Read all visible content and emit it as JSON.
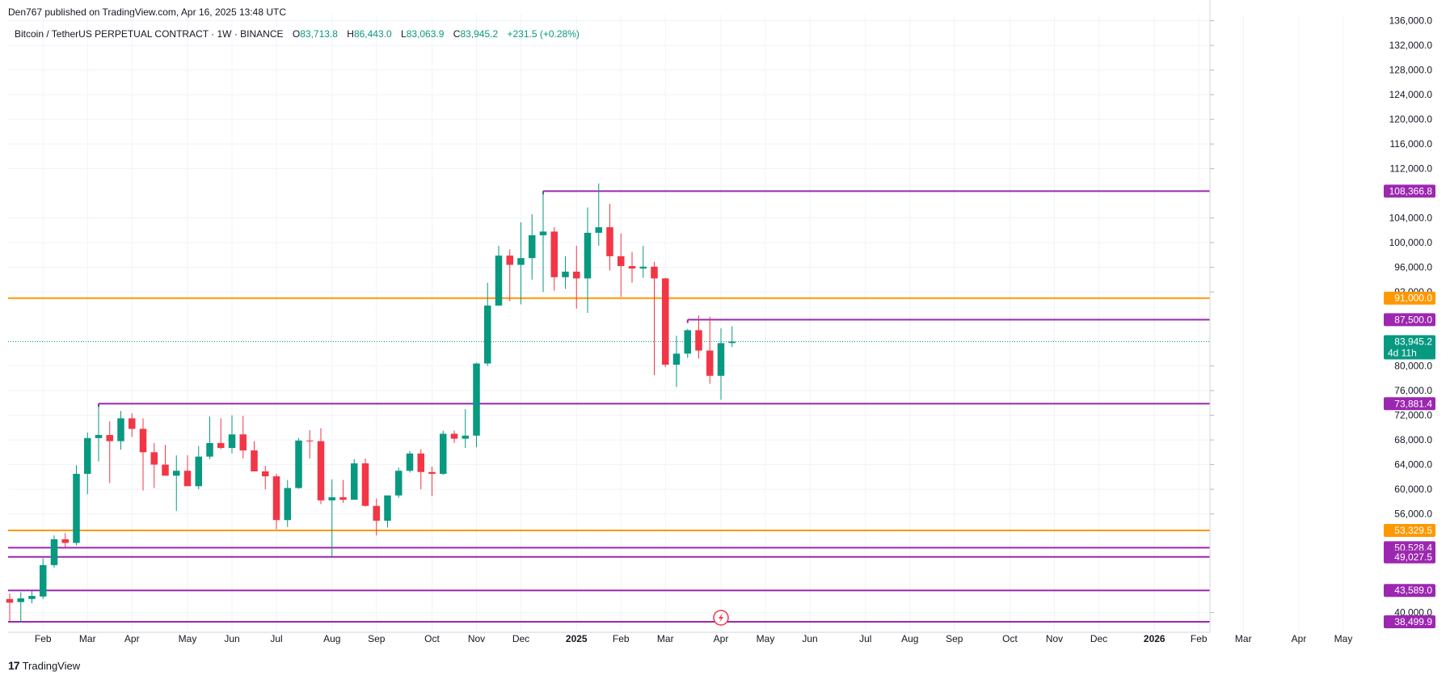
{
  "publisher": "Den767 published on TradingView.com, Apr 16, 2025 13:48 UTC",
  "footer": {
    "logo_icon": "tradingview-logo-icon",
    "brand": "TradingView"
  },
  "legend": {
    "symbol": "Bitcoin / TetherUS PERPETUAL CONTRACT · 1W · BINANCE",
    "open_label": "O",
    "open": "83,713.8",
    "high_label": "H",
    "high": "86,443.0",
    "low_label": "L",
    "low": "83,063.9",
    "close_label": "C",
    "close": "83,945.2",
    "change": "+231.5 (+0.28%)"
  },
  "colors": {
    "up": "#089981",
    "down": "#f23645",
    "purple": "#9c27b0",
    "orange": "#ff9800",
    "grid": "#f0f3fa"
  },
  "chart_data": {
    "type": "candlestick",
    "interval": "1W",
    "ylim": [
      36800,
      137000
    ],
    "y_ticks": [
      {
        "v": 40000,
        "label": "40,000.0"
      },
      {
        "v": 56000,
        "label": "56,000.0"
      },
      {
        "v": 60000,
        "label": "60,000.0"
      },
      {
        "v": 64000,
        "label": "64,000.0"
      },
      {
        "v": 68000,
        "label": "68,000.0"
      },
      {
        "v": 72000,
        "label": "72,000.0"
      },
      {
        "v": 76000,
        "label": "76,000.0"
      },
      {
        "v": 80000,
        "label": "80,000.0"
      },
      {
        "v": 92000,
        "label": "92,000.0"
      },
      {
        "v": 96000,
        "label": "96,000.0"
      },
      {
        "v": 100000,
        "label": "100,000.0"
      },
      {
        "v": 104000,
        "label": "104,000.0"
      },
      {
        "v": 112000,
        "label": "112,000.0"
      },
      {
        "v": 116000,
        "label": "116,000.0"
      },
      {
        "v": 120000,
        "label": "120,000.0"
      },
      {
        "v": 124000,
        "label": "124,000.0"
      },
      {
        "v": 128000,
        "label": "128,000.0"
      },
      {
        "v": 132000,
        "label": "132,000.0"
      },
      {
        "v": 136000,
        "label": "136,000.0"
      }
    ],
    "x_ticks": [
      {
        "label": "Feb",
        "i": 3,
        "bold": false
      },
      {
        "label": "Mar",
        "i": 7,
        "bold": false
      },
      {
        "label": "Apr",
        "i": 11,
        "bold": false
      },
      {
        "label": "May",
        "i": 16,
        "bold": false
      },
      {
        "label": "Jun",
        "i": 20,
        "bold": false
      },
      {
        "label": "Jul",
        "i": 24,
        "bold": false
      },
      {
        "label": "Aug",
        "i": 29,
        "bold": false
      },
      {
        "label": "Sep",
        "i": 33,
        "bold": false
      },
      {
        "label": "Oct",
        "i": 38,
        "bold": false
      },
      {
        "label": "Nov",
        "i": 42,
        "bold": false
      },
      {
        "label": "Dec",
        "i": 46,
        "bold": false
      },
      {
        "label": "2025",
        "i": 51,
        "bold": true
      },
      {
        "label": "Feb",
        "i": 55,
        "bold": false
      },
      {
        "label": "Mar",
        "i": 59,
        "bold": false
      },
      {
        "label": "Apr",
        "i": 64,
        "bold": false
      },
      {
        "label": "May",
        "i": 68,
        "bold": false
      },
      {
        "label": "Jun",
        "i": 72,
        "bold": false
      },
      {
        "label": "Jul",
        "i": 77,
        "bold": false
      },
      {
        "label": "Aug",
        "i": 81,
        "bold": false
      },
      {
        "label": "Sep",
        "i": 85,
        "bold": false
      },
      {
        "label": "Oct",
        "i": 90,
        "bold": false
      },
      {
        "label": "Nov",
        "i": 94,
        "bold": false
      },
      {
        "label": "Dec",
        "i": 98,
        "bold": false
      },
      {
        "label": "2026",
        "i": 103,
        "bold": true
      },
      {
        "label": "Feb",
        "i": 107,
        "bold": false
      },
      {
        "label": "Mar",
        "i": 111,
        "bold": false
      },
      {
        "label": "Apr",
        "i": 116,
        "bold": false
      },
      {
        "label": "May",
        "i": 120,
        "bold": false
      }
    ],
    "candles": [
      {
        "o": 42200,
        "h": 43100,
        "l": 38600,
        "c": 41600
      },
      {
        "o": 41700,
        "h": 43300,
        "l": 38500,
        "c": 42300
      },
      {
        "o": 42200,
        "h": 43500,
        "l": 41500,
        "c": 42700
      },
      {
        "o": 42600,
        "h": 48800,
        "l": 42200,
        "c": 47700
      },
      {
        "o": 47700,
        "h": 52500,
        "l": 47300,
        "c": 51900
      },
      {
        "o": 51900,
        "h": 52900,
        "l": 50600,
        "c": 51300
      },
      {
        "o": 51300,
        "h": 63900,
        "l": 50900,
        "c": 62500
      },
      {
        "o": 62500,
        "h": 69200,
        "l": 59200,
        "c": 68300
      },
      {
        "o": 68300,
        "h": 73500,
        "l": 64500,
        "c": 68800
      },
      {
        "o": 68800,
        "h": 71000,
        "l": 61000,
        "c": 67800
      },
      {
        "o": 67800,
        "h": 72700,
        "l": 66400,
        "c": 71500
      },
      {
        "o": 71500,
        "h": 72300,
        "l": 68500,
        "c": 69800
      },
      {
        "o": 69800,
        "h": 71500,
        "l": 59800,
        "c": 66000
      },
      {
        "o": 66000,
        "h": 67500,
        "l": 60200,
        "c": 64000
      },
      {
        "o": 64000,
        "h": 67200,
        "l": 62800,
        "c": 62200
      },
      {
        "o": 62200,
        "h": 65500,
        "l": 56500,
        "c": 63000
      },
      {
        "o": 63000,
        "h": 65500,
        "l": 60700,
        "c": 60500
      },
      {
        "o": 60500,
        "h": 67000,
        "l": 60000,
        "c": 65300
      },
      {
        "o": 65300,
        "h": 71800,
        "l": 64900,
        "c": 67500
      },
      {
        "o": 67500,
        "h": 71500,
        "l": 66500,
        "c": 66700
      },
      {
        "o": 66700,
        "h": 72000,
        "l": 65800,
        "c": 68900
      },
      {
        "o": 68900,
        "h": 71900,
        "l": 65000,
        "c": 66300
      },
      {
        "o": 66300,
        "h": 67800,
        "l": 63400,
        "c": 62900
      },
      {
        "o": 62900,
        "h": 63800,
        "l": 60000,
        "c": 62100
      },
      {
        "o": 62100,
        "h": 62500,
        "l": 53500,
        "c": 55000
      },
      {
        "o": 55000,
        "h": 61500,
        "l": 53900,
        "c": 60200
      },
      {
        "o": 60200,
        "h": 68300,
        "l": 60100,
        "c": 67900
      },
      {
        "o": 67900,
        "h": 69600,
        "l": 65000,
        "c": 67800
      },
      {
        "o": 67800,
        "h": 69900,
        "l": 57600,
        "c": 58200
      },
      {
        "o": 58200,
        "h": 61600,
        "l": 49100,
        "c": 58700
      },
      {
        "o": 58700,
        "h": 61500,
        "l": 57800,
        "c": 58300
      },
      {
        "o": 58300,
        "h": 64900,
        "l": 58300,
        "c": 64200
      },
      {
        "o": 64200,
        "h": 65000,
        "l": 57200,
        "c": 57300
      },
      {
        "o": 57300,
        "h": 58500,
        "l": 52500,
        "c": 54900
      },
      {
        "o": 54900,
        "h": 59000,
        "l": 53800,
        "c": 59000
      },
      {
        "o": 59000,
        "h": 63500,
        "l": 58600,
        "c": 63000
      },
      {
        "o": 63000,
        "h": 66200,
        "l": 62700,
        "c": 65800
      },
      {
        "o": 65800,
        "h": 66500,
        "l": 60000,
        "c": 62800
      },
      {
        "o": 62800,
        "h": 63700,
        "l": 58900,
        "c": 62500
      },
      {
        "o": 62500,
        "h": 69500,
        "l": 62300,
        "c": 69000
      },
      {
        "o": 69000,
        "h": 69500,
        "l": 67500,
        "c": 68200
      },
      {
        "o": 68200,
        "h": 73000,
        "l": 66700,
        "c": 68700
      },
      {
        "o": 68700,
        "h": 80500,
        "l": 66800,
        "c": 80400
      },
      {
        "o": 80400,
        "h": 93500,
        "l": 80000,
        "c": 89800
      },
      {
        "o": 89800,
        "h": 99500,
        "l": 90800,
        "c": 97900
      },
      {
        "o": 97900,
        "h": 98900,
        "l": 90500,
        "c": 96400
      },
      {
        "o": 96400,
        "h": 103300,
        "l": 90000,
        "c": 97500
      },
      {
        "o": 97500,
        "h": 104600,
        "l": 94000,
        "c": 101200
      },
      {
        "o": 101200,
        "h": 108400,
        "l": 92000,
        "c": 101800
      },
      {
        "o": 101800,
        "h": 102500,
        "l": 92200,
        "c": 94400
      },
      {
        "o": 94400,
        "h": 97800,
        "l": 92500,
        "c": 95300
      },
      {
        "o": 95300,
        "h": 99500,
        "l": 89300,
        "c": 94200
      },
      {
        "o": 94200,
        "h": 105700,
        "l": 88600,
        "c": 101600
      },
      {
        "o": 101600,
        "h": 109600,
        "l": 99500,
        "c": 102500
      },
      {
        "o": 102500,
        "h": 106300,
        "l": 95500,
        "c": 97800
      },
      {
        "o": 97800,
        "h": 101500,
        "l": 91200,
        "c": 96200
      },
      {
        "o": 96200,
        "h": 98500,
        "l": 93500,
        "c": 95800
      },
      {
        "o": 95800,
        "h": 99500,
        "l": 94300,
        "c": 96100
      },
      {
        "o": 96100,
        "h": 96900,
        "l": 78500,
        "c": 94200
      },
      {
        "o": 94200,
        "h": 94300,
        "l": 79800,
        "c": 80200
      },
      {
        "o": 80200,
        "h": 84900,
        "l": 76600,
        "c": 82000
      },
      {
        "o": 82000,
        "h": 86000,
        "l": 81300,
        "c": 85800
      },
      {
        "o": 85800,
        "h": 88200,
        "l": 81200,
        "c": 82500
      },
      {
        "o": 82500,
        "h": 88000,
        "l": 77100,
        "c": 78400
      },
      {
        "o": 78400,
        "h": 86100,
        "l": 74500,
        "c": 83700
      },
      {
        "o": 83713.8,
        "h": 86443.0,
        "l": 83063.9,
        "c": 83945.2
      }
    ],
    "levels": [
      {
        "price": 108366.8,
        "label": "108,366.8",
        "color": "purple",
        "from_i": 48
      },
      {
        "price": 91000.0,
        "label": "91,000.0",
        "color": "orange",
        "from_i": -1
      },
      {
        "price": 87500.0,
        "label": "87,500.0",
        "color": "purple",
        "from_i": 61
      },
      {
        "price": 73881.4,
        "label": "73,881.4",
        "color": "purple",
        "from_i": 8
      },
      {
        "price": 53329.5,
        "label": "53,329.5",
        "color": "orange",
        "from_i": -1
      },
      {
        "price": 50528.4,
        "label": "50,528.4",
        "color": "purple",
        "from_i": -1
      },
      {
        "price": 49027.5,
        "label": "49,027.5",
        "color": "purple",
        "from_i": -1
      },
      {
        "price": 43589.0,
        "label": "43,589.0",
        "color": "purple",
        "from_i": -1
      },
      {
        "price": 38499.9,
        "label": "38,499.9",
        "color": "purple",
        "from_i": -1
      }
    ],
    "last_price": {
      "price": 83945.2,
      "label": "83,945.2",
      "countdown": "4d 11h"
    },
    "event_marker": {
      "i": 64,
      "icon": "lightning-event-icon"
    }
  }
}
